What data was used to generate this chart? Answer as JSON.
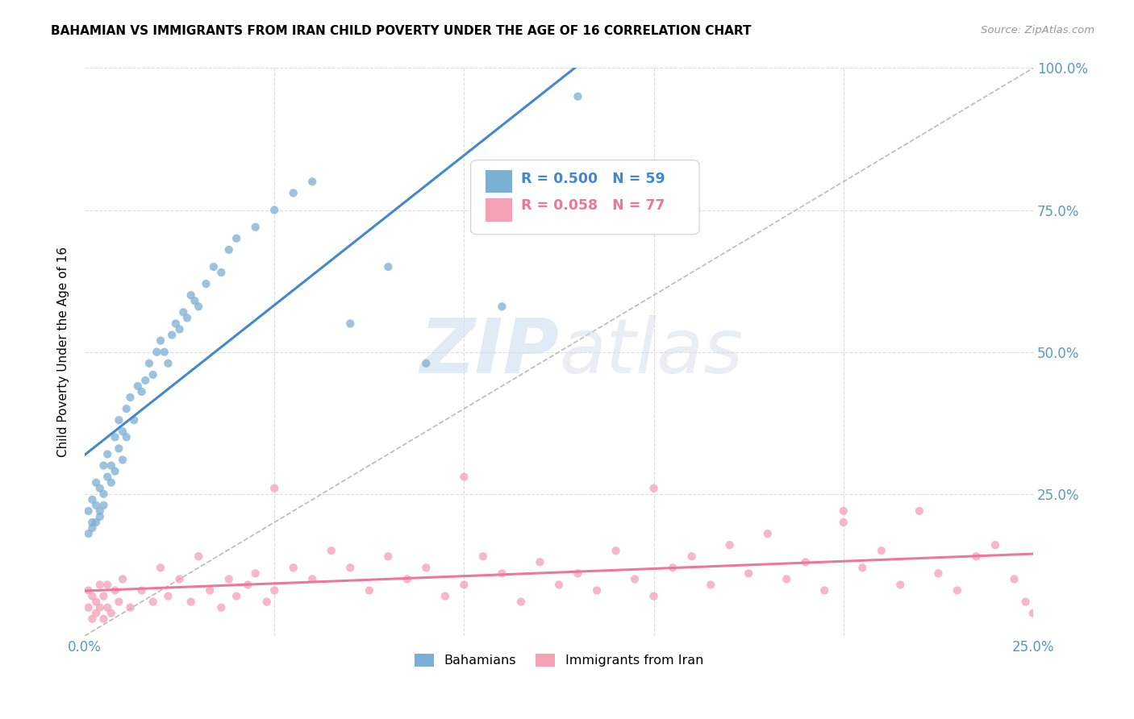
{
  "title": "BAHAMIAN VS IMMIGRANTS FROM IRAN CHILD POVERTY UNDER THE AGE OF 16 CORRELATION CHART",
  "source": "Source: ZipAtlas.com",
  "ylabel": "Child Poverty Under the Age of 16",
  "xlim": [
    0.0,
    0.25
  ],
  "ylim": [
    0.0,
    1.0
  ],
  "bahamian_color": "#7BAFD4",
  "iran_color": "#F4A0B5",
  "bahamian_line_color": "#4488CC",
  "iran_line_color": "#EE7799",
  "bahamian_R": 0.5,
  "bahamian_N": 59,
  "iran_R": 0.058,
  "iran_N": 77,
  "diagonal_color": "#BBBBBB",
  "watermark_zip": "ZIP",
  "watermark_atlas": "atlas",
  "grid_color": "#DDDDDD",
  "tick_color": "#5599CC",
  "bahamian_x": [
    0.001,
    0.001,
    0.002,
    0.002,
    0.002,
    0.003,
    0.003,
    0.003,
    0.004,
    0.004,
    0.004,
    0.005,
    0.005,
    0.005,
    0.006,
    0.006,
    0.007,
    0.007,
    0.008,
    0.008,
    0.009,
    0.009,
    0.01,
    0.01,
    0.011,
    0.011,
    0.012,
    0.013,
    0.014,
    0.015,
    0.016,
    0.017,
    0.018,
    0.019,
    0.02,
    0.021,
    0.022,
    0.023,
    0.024,
    0.025,
    0.026,
    0.027,
    0.028,
    0.029,
    0.03,
    0.032,
    0.034,
    0.036,
    0.038,
    0.04,
    0.045,
    0.05,
    0.055,
    0.06,
    0.07,
    0.08,
    0.09,
    0.11,
    0.13
  ],
  "bahamian_y": [
    0.22,
    0.18,
    0.2,
    0.24,
    0.19,
    0.23,
    0.2,
    0.27,
    0.22,
    0.26,
    0.21,
    0.25,
    0.3,
    0.23,
    0.28,
    0.32,
    0.3,
    0.27,
    0.29,
    0.35,
    0.33,
    0.38,
    0.36,
    0.31,
    0.4,
    0.35,
    0.42,
    0.38,
    0.44,
    0.43,
    0.45,
    0.48,
    0.46,
    0.5,
    0.52,
    0.5,
    0.48,
    0.53,
    0.55,
    0.54,
    0.57,
    0.56,
    0.6,
    0.59,
    0.58,
    0.62,
    0.65,
    0.64,
    0.68,
    0.7,
    0.72,
    0.75,
    0.78,
    0.8,
    0.55,
    0.65,
    0.48,
    0.58,
    0.95
  ],
  "iran_x": [
    0.001,
    0.001,
    0.002,
    0.002,
    0.003,
    0.003,
    0.004,
    0.004,
    0.005,
    0.005,
    0.006,
    0.006,
    0.007,
    0.008,
    0.009,
    0.01,
    0.012,
    0.015,
    0.018,
    0.02,
    0.022,
    0.025,
    0.028,
    0.03,
    0.033,
    0.036,
    0.038,
    0.04,
    0.043,
    0.045,
    0.048,
    0.05,
    0.055,
    0.06,
    0.065,
    0.07,
    0.075,
    0.08,
    0.085,
    0.09,
    0.095,
    0.1,
    0.105,
    0.11,
    0.115,
    0.12,
    0.125,
    0.13,
    0.135,
    0.14,
    0.145,
    0.15,
    0.155,
    0.16,
    0.165,
    0.17,
    0.175,
    0.18,
    0.185,
    0.19,
    0.195,
    0.2,
    0.205,
    0.21,
    0.215,
    0.22,
    0.225,
    0.23,
    0.235,
    0.24,
    0.245,
    0.248,
    0.05,
    0.1,
    0.15,
    0.2,
    0.25
  ],
  "iran_y": [
    0.05,
    0.08,
    0.03,
    0.07,
    0.04,
    0.06,
    0.09,
    0.05,
    0.03,
    0.07,
    0.05,
    0.09,
    0.04,
    0.08,
    0.06,
    0.1,
    0.05,
    0.08,
    0.06,
    0.12,
    0.07,
    0.1,
    0.06,
    0.14,
    0.08,
    0.05,
    0.1,
    0.07,
    0.09,
    0.11,
    0.06,
    0.08,
    0.12,
    0.1,
    0.15,
    0.12,
    0.08,
    0.14,
    0.1,
    0.12,
    0.07,
    0.09,
    0.14,
    0.11,
    0.06,
    0.13,
    0.09,
    0.11,
    0.08,
    0.15,
    0.1,
    0.07,
    0.12,
    0.14,
    0.09,
    0.16,
    0.11,
    0.18,
    0.1,
    0.13,
    0.08,
    0.2,
    0.12,
    0.15,
    0.09,
    0.22,
    0.11,
    0.08,
    0.14,
    0.16,
    0.1,
    0.06,
    0.26,
    0.28,
    0.26,
    0.22,
    0.04
  ]
}
